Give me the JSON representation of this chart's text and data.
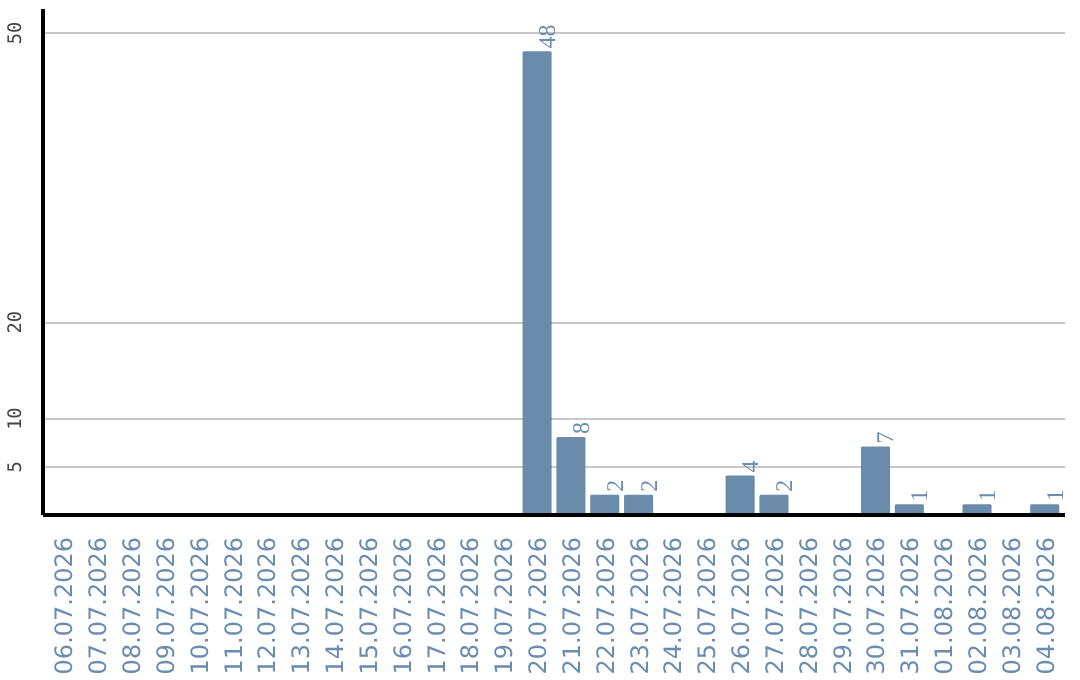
{
  "chart_data": {
    "type": "bar",
    "categories": [
      "06.07.2026",
      "07.07.2026",
      "08.07.2026",
      "09.07.2026",
      "10.07.2026",
      "11.07.2026",
      "12.07.2026",
      "13.07.2026",
      "14.07.2026",
      "15.07.2026",
      "16.07.2026",
      "17.07.2026",
      "18.07.2026",
      "19.07.2026",
      "20.07.2026",
      "21.07.2026",
      "22.07.2026",
      "23.07.2026",
      "24.07.2026",
      "25.07.2026",
      "26.07.2026",
      "27.07.2026",
      "28.07.2026",
      "29.07.2026",
      "30.07.2026",
      "31.07.2026",
      "01.08.2026",
      "02.08.2026",
      "03.08.2026",
      "04.08.2026"
    ],
    "values": [
      0,
      0,
      0,
      0,
      0,
      0,
      0,
      0,
      0,
      0,
      0,
      0,
      0,
      0,
      48,
      8,
      2,
      2,
      0,
      0,
      4,
      2,
      0,
      0,
      7,
      1,
      0,
      1,
      0,
      1
    ],
    "value_labels": [
      null,
      null,
      null,
      null,
      null,
      null,
      null,
      null,
      null,
      null,
      null,
      null,
      null,
      null,
      "48",
      "8",
      "2",
      "2",
      null,
      null,
      "4",
      "2",
      null,
      null,
      "7",
      "1",
      null,
      "1",
      null,
      "1"
    ],
    "color": "#6a8caa",
    "ylim": [
      0,
      52.5
    ],
    "yticks": [
      5,
      10,
      20,
      50
    ],
    "grid": "y"
  }
}
